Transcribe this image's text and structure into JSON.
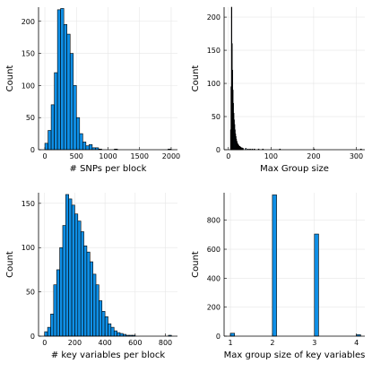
{
  "chart_data": [
    {
      "type": "bar",
      "xlabel": "# SNPs per block",
      "ylabel": "Count",
      "xlim": [
        -100,
        2100
      ],
      "ylim": [
        0,
        222
      ],
      "xticks": [
        0,
        500,
        1000,
        1500,
        2000
      ],
      "yticks": [
        0,
        50,
        100,
        150,
        200
      ],
      "grid": true,
      "bin_width": 50,
      "bin_start": 0,
      "values": [
        10,
        30,
        70,
        120,
        218,
        220,
        195,
        180,
        150,
        100,
        50,
        25,
        12,
        6,
        8,
        3,
        3,
        1,
        0,
        0,
        0,
        0,
        1,
        0,
        0,
        0,
        0,
        0,
        0,
        0,
        0,
        0,
        0,
        0,
        0,
        0,
        0,
        0,
        0,
        1
      ],
      "color": "#0f8fe6"
    },
    {
      "type": "bar",
      "xlabel": "Max Group size",
      "ylabel": "Count",
      "xlim": [
        -10,
        320
      ],
      "ylim": [
        0,
        215
      ],
      "xticks": [
        0,
        100,
        200,
        300
      ],
      "yticks": [
        0,
        50,
        100,
        150,
        200
      ],
      "grid": true,
      "bin_width": 1,
      "bin_start": 5,
      "values": [
        30,
        95,
        215,
        160,
        120,
        90,
        70,
        55,
        45,
        38,
        30,
        24,
        20,
        16,
        13,
        11,
        9,
        8,
        7,
        6,
        5,
        5,
        4,
        4,
        3,
        3,
        3,
        2,
        2,
        2
      ],
      "tail": [
        [
          40,
          2
        ],
        [
          45,
          1
        ],
        [
          50,
          1
        ],
        [
          55,
          1
        ],
        [
          60,
          1
        ],
        [
          70,
          1
        ],
        [
          80,
          1
        ],
        [
          120,
          1
        ],
        [
          200,
          1
        ],
        [
          310,
          1
        ]
      ],
      "color": "#0f8fe6"
    },
    {
      "type": "bar",
      "xlabel": "# key variables per block",
      "ylabel": "Count",
      "xlim": [
        -40,
        880
      ],
      "ylim": [
        0,
        162
      ],
      "xticks": [
        0,
        200,
        400,
        600,
        800
      ],
      "yticks": [
        0,
        50,
        100,
        150
      ],
      "grid": true,
      "bin_width": 20,
      "bin_start": 0,
      "values": [
        5,
        10,
        25,
        58,
        75,
        100,
        125,
        160,
        155,
        148,
        138,
        130,
        118,
        102,
        95,
        84,
        70,
        58,
        40,
        28,
        22,
        14,
        10,
        6,
        4,
        3,
        2,
        1,
        1,
        1,
        0,
        0,
        0,
        0,
        0,
        0,
        0,
        0,
        0,
        0,
        0,
        1
      ],
      "color": "#0f8fe6"
    },
    {
      "type": "bar",
      "xlabel": "Max group size of key variables",
      "ylabel": "Count",
      "xlim": [
        0.85,
        4.2
      ],
      "ylim": [
        0,
        990
      ],
      "xticks": [
        1,
        2,
        3,
        4
      ],
      "yticks": [
        0,
        200,
        400,
        600,
        800
      ],
      "grid": true,
      "bin_width": 0.1,
      "bars": [
        [
          1.0,
          20
        ],
        [
          2.0,
          975
        ],
        [
          3.0,
          705
        ],
        [
          4.0,
          10
        ]
      ],
      "color": "#0f8fe6"
    }
  ]
}
